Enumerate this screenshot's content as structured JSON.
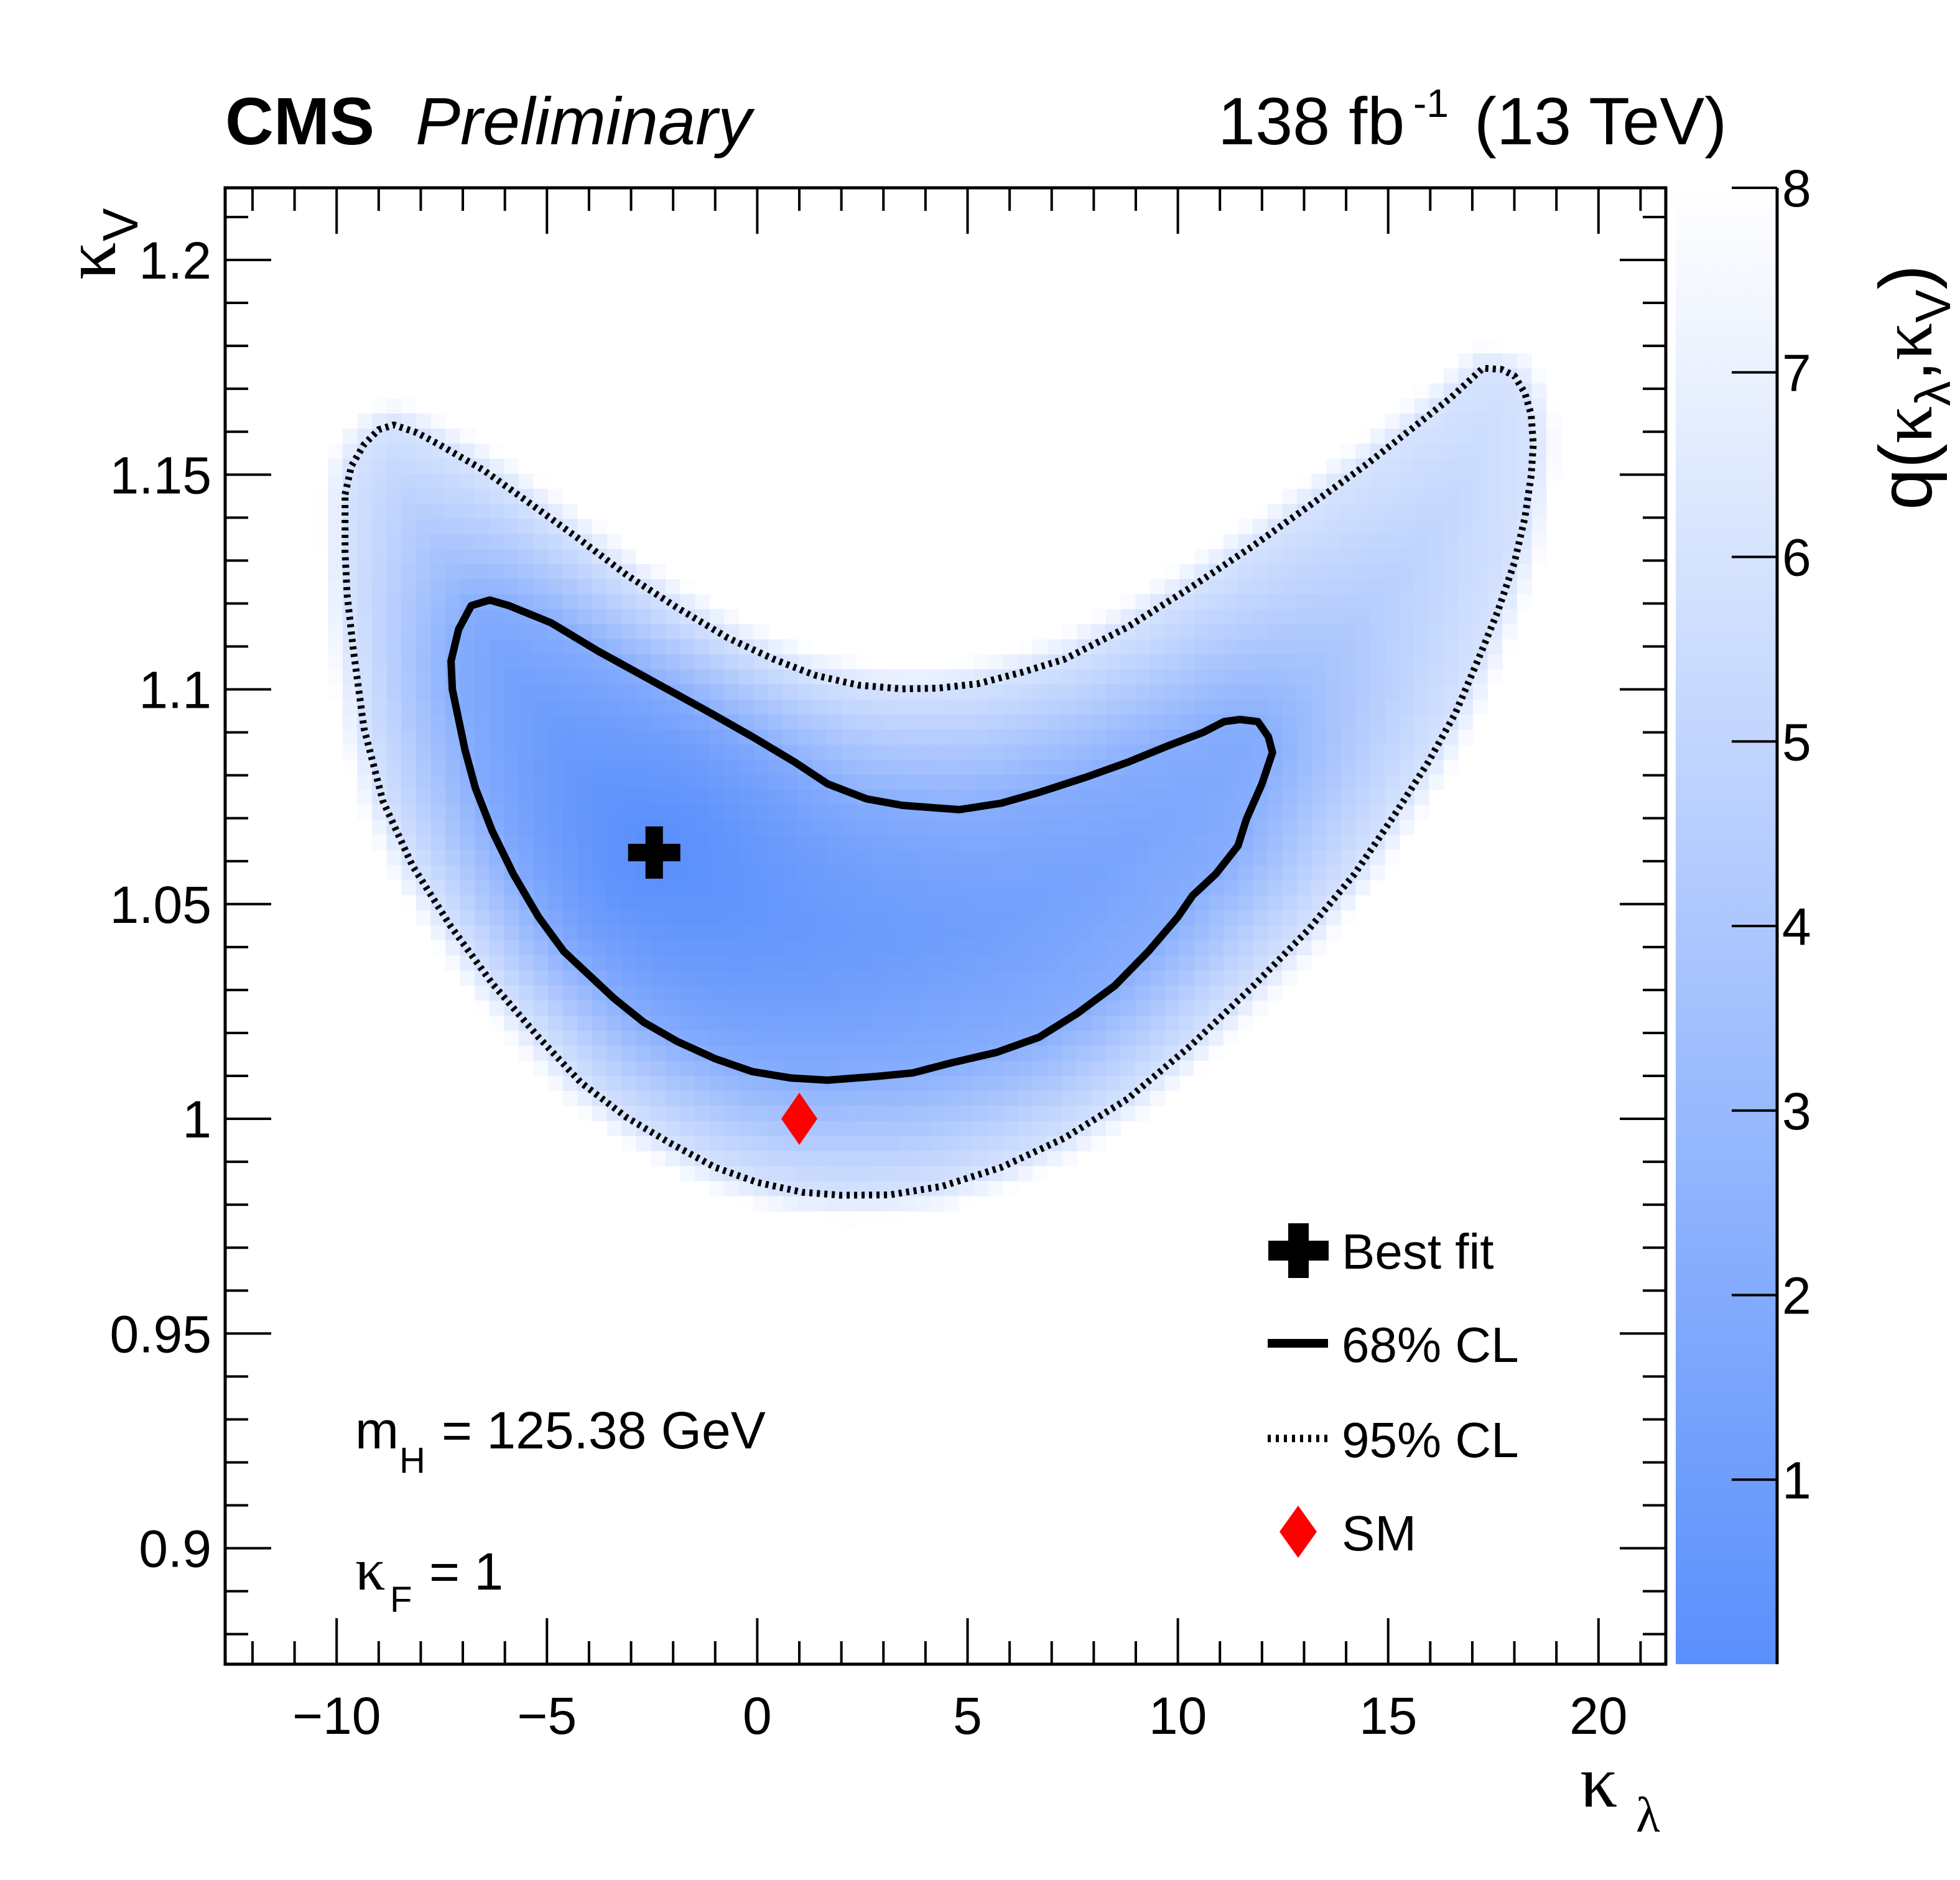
{
  "header": {
    "experiment": "CMS",
    "status": "Preliminary",
    "lumi_value": "138 fb",
    "lumi_exponent": "-1",
    "energy": "(13 TeV)"
  },
  "annotations": {
    "mass_symbol": "m",
    "mass_subscript": "H",
    "mass_value": "= 125.38 GeV",
    "kf_symbol": "κ",
    "kf_subscript": "F",
    "kf_value": "= 1"
  },
  "chart_data": {
    "type": "heatmap",
    "title": "CMS Preliminary",
    "subtitle": "138 fb^-1 (13 TeV)",
    "xlabel": "κ_λ",
    "ylabel": "κ_V",
    "zlabel": "q(κ_λ,κ_V)",
    "axis_labels": {
      "x_symbol": "κ",
      "x_subscript": "λ",
      "y_symbol": "κ",
      "y_subscript": "V",
      "z_prefix": "q(",
      "z_k1": "κ",
      "z_sub1": "λ",
      "z_sep": ",",
      "z_k2": "κ",
      "z_sub2": "V",
      "z_suffix": ")"
    },
    "xlim": [
      -12.65,
      21.6
    ],
    "ylim": [
      0.873,
      1.2168
    ],
    "zlim": [
      0,
      8
    ],
    "x_ticks": [
      -10,
      -5,
      0,
      5,
      10,
      15,
      20
    ],
    "x_tick_labels": [
      "−10",
      "−5",
      "0",
      "5",
      "10",
      "15",
      "20"
    ],
    "x_minor_step": 1,
    "y_ticks": [
      0.9,
      0.95,
      1.0,
      1.05,
      1.1,
      1.15,
      1.2
    ],
    "y_tick_labels": [
      "0.9",
      "0.95",
      "1",
      "1.05",
      "1.1",
      "1.15",
      "1.2"
    ],
    "y_minor_step": 0.01,
    "z_ticks": [
      1,
      2,
      3,
      4,
      5,
      6,
      7,
      8
    ],
    "z_tick_labels": [
      "1",
      "2",
      "3",
      "4",
      "5",
      "6",
      "7",
      "8"
    ],
    "colormap": {
      "low": "#5a8ffc",
      "high": "#ffffff"
    },
    "grid": false,
    "best_fit": {
      "x": -2.45,
      "y": 1.062
    },
    "sm_point": {
      "x": 1.0,
      "y": 1.0
    },
    "contour_68": {
      "label": "68% CL",
      "q_level": 2.3,
      "points": [
        [
          -7.28,
          1.1066
        ],
        [
          -7.1,
          1.114
        ],
        [
          -6.8,
          1.1195
        ],
        [
          -6.36,
          1.1208
        ],
        [
          -5.9,
          1.1195
        ],
        [
          -4.9,
          1.1155
        ],
        [
          -3.8,
          1.109
        ],
        [
          -2.5,
          1.102
        ],
        [
          -1.2,
          1.095
        ],
        [
          -0.12,
          1.089
        ],
        [
          0.9,
          1.083
        ],
        [
          1.67,
          1.078
        ],
        [
          2.6,
          1.0745
        ],
        [
          3.45,
          1.073
        ],
        [
          4.8,
          1.072
        ],
        [
          5.8,
          1.0735
        ],
        [
          6.7,
          1.076
        ],
        [
          7.8,
          1.0795
        ],
        [
          8.8,
          1.083
        ],
        [
          9.8,
          1.087
        ],
        [
          10.6,
          1.09
        ],
        [
          11.1,
          1.0925
        ],
        [
          11.48,
          1.093
        ],
        [
          11.9,
          1.0925
        ],
        [
          12.15,
          1.089
        ],
        [
          12.25,
          1.0853
        ],
        [
          12.0,
          1.078
        ],
        [
          11.63,
          1.0698
        ],
        [
          11.43,
          1.0636
        ],
        [
          10.9,
          1.057
        ],
        [
          10.35,
          1.052
        ],
        [
          10.0,
          1.047
        ],
        [
          9.3,
          1.039
        ],
        [
          8.5,
          1.031
        ],
        [
          7.6,
          1.0245
        ],
        [
          6.7,
          1.019
        ],
        [
          5.7,
          1.0155
        ],
        [
          4.6,
          1.013
        ],
        [
          3.7,
          1.0107
        ],
        [
          2.86,
          1.0099
        ],
        [
          1.67,
          1.009
        ],
        [
          0.8,
          1.0095
        ],
        [
          -0.12,
          1.011
        ],
        [
          -1.0,
          1.014
        ],
        [
          -1.9,
          1.018
        ],
        [
          -2.7,
          1.0225
        ],
        [
          -3.4,
          1.028
        ],
        [
          -4.0,
          1.0335
        ],
        [
          -4.6,
          1.039
        ],
        [
          -5.2,
          1.047
        ],
        [
          -5.8,
          1.057
        ],
        [
          -6.3,
          1.067
        ],
        [
          -6.7,
          1.077
        ],
        [
          -6.95,
          1.086
        ],
        [
          -7.1,
          1.093
        ],
        [
          -7.25,
          1.1
        ]
      ]
    },
    "contour_95": {
      "label": "95% CL",
      "q_level": 5.99,
      "points": [
        [
          -9.8,
          1.1454
        ],
        [
          -9.65,
          1.152
        ],
        [
          -9.35,
          1.157
        ],
        [
          -9.0,
          1.1605
        ],
        [
          -8.64,
          1.1616
        ],
        [
          -8.1,
          1.1598
        ],
        [
          -7.56,
          1.157
        ],
        [
          -6.5,
          1.151
        ],
        [
          -5.5,
          1.144
        ],
        [
          -4.3,
          1.1355
        ],
        [
          -3.1,
          1.1266
        ],
        [
          -1.9,
          1.119
        ],
        [
          -0.7,
          1.112
        ],
        [
          0.4,
          1.107
        ],
        [
          1.37,
          1.1033
        ],
        [
          2.4,
          1.101
        ],
        [
          3.45,
          1.1001
        ],
        [
          4.3,
          1.1003
        ],
        [
          5.24,
          1.1013
        ],
        [
          6.3,
          1.104
        ],
        [
          7.3,
          1.107
        ],
        [
          8.8,
          1.1145
        ],
        [
          10.3,
          1.1237
        ],
        [
          11.8,
          1.1335
        ],
        [
          13.3,
          1.144
        ],
        [
          14.5,
          1.1525
        ],
        [
          15.65,
          1.1614
        ],
        [
          16.5,
          1.168
        ],
        [
          17.25,
          1.1748
        ],
        [
          17.7,
          1.1745
        ],
        [
          18.0,
          1.173
        ],
        [
          18.25,
          1.169
        ],
        [
          18.4,
          1.164
        ],
        [
          18.45,
          1.157
        ],
        [
          18.4,
          1.1498
        ],
        [
          18.25,
          1.14
        ],
        [
          18.0,
          1.1295
        ],
        [
          17.6,
          1.118
        ],
        [
          17.1,
          1.106
        ],
        [
          16.6,
          1.0945
        ],
        [
          15.95,
          1.083
        ],
        [
          15.1,
          1.07
        ],
        [
          14.2,
          1.057
        ],
        [
          13.1,
          1.044
        ],
        [
          11.8,
          1.031
        ],
        [
          10.3,
          1.017
        ],
        [
          8.8,
          1.0046
        ],
        [
          7.3,
          0.9955
        ],
        [
          5.8,
          0.9887
        ],
        [
          4.4,
          0.9843
        ],
        [
          3.15,
          0.9823
        ],
        [
          2.0,
          0.9822
        ],
        [
          1.07,
          0.9829
        ],
        [
          0.0,
          0.9852
        ],
        [
          -1.0,
          0.9887
        ],
        [
          -2.1,
          0.9945
        ],
        [
          -3.1,
          1.0003
        ],
        [
          -4.2,
          1.0085
        ],
        [
          -5.2,
          1.019
        ],
        [
          -6.3,
          1.0315
        ],
        [
          -7.3,
          1.045
        ],
        [
          -8.2,
          1.059
        ],
        [
          -8.9,
          1.074
        ],
        [
          -9.35,
          1.091
        ],
        [
          -9.6,
          1.109
        ],
        [
          -9.75,
          1.122
        ],
        [
          -9.8,
          1.132
        ]
      ]
    },
    "legend": {
      "placement": "bottom-right",
      "entries": [
        {
          "label": "Best fit",
          "symbol": "cross",
          "color": "#000000"
        },
        {
          "label": "68% CL",
          "symbol": "solid-line",
          "color": "#000000"
        },
        {
          "label": "95% CL",
          "symbol": "dotted-line",
          "color": "#000000"
        },
        {
          "label": "SM",
          "symbol": "diamond",
          "color": "#ff0000"
        }
      ]
    }
  }
}
